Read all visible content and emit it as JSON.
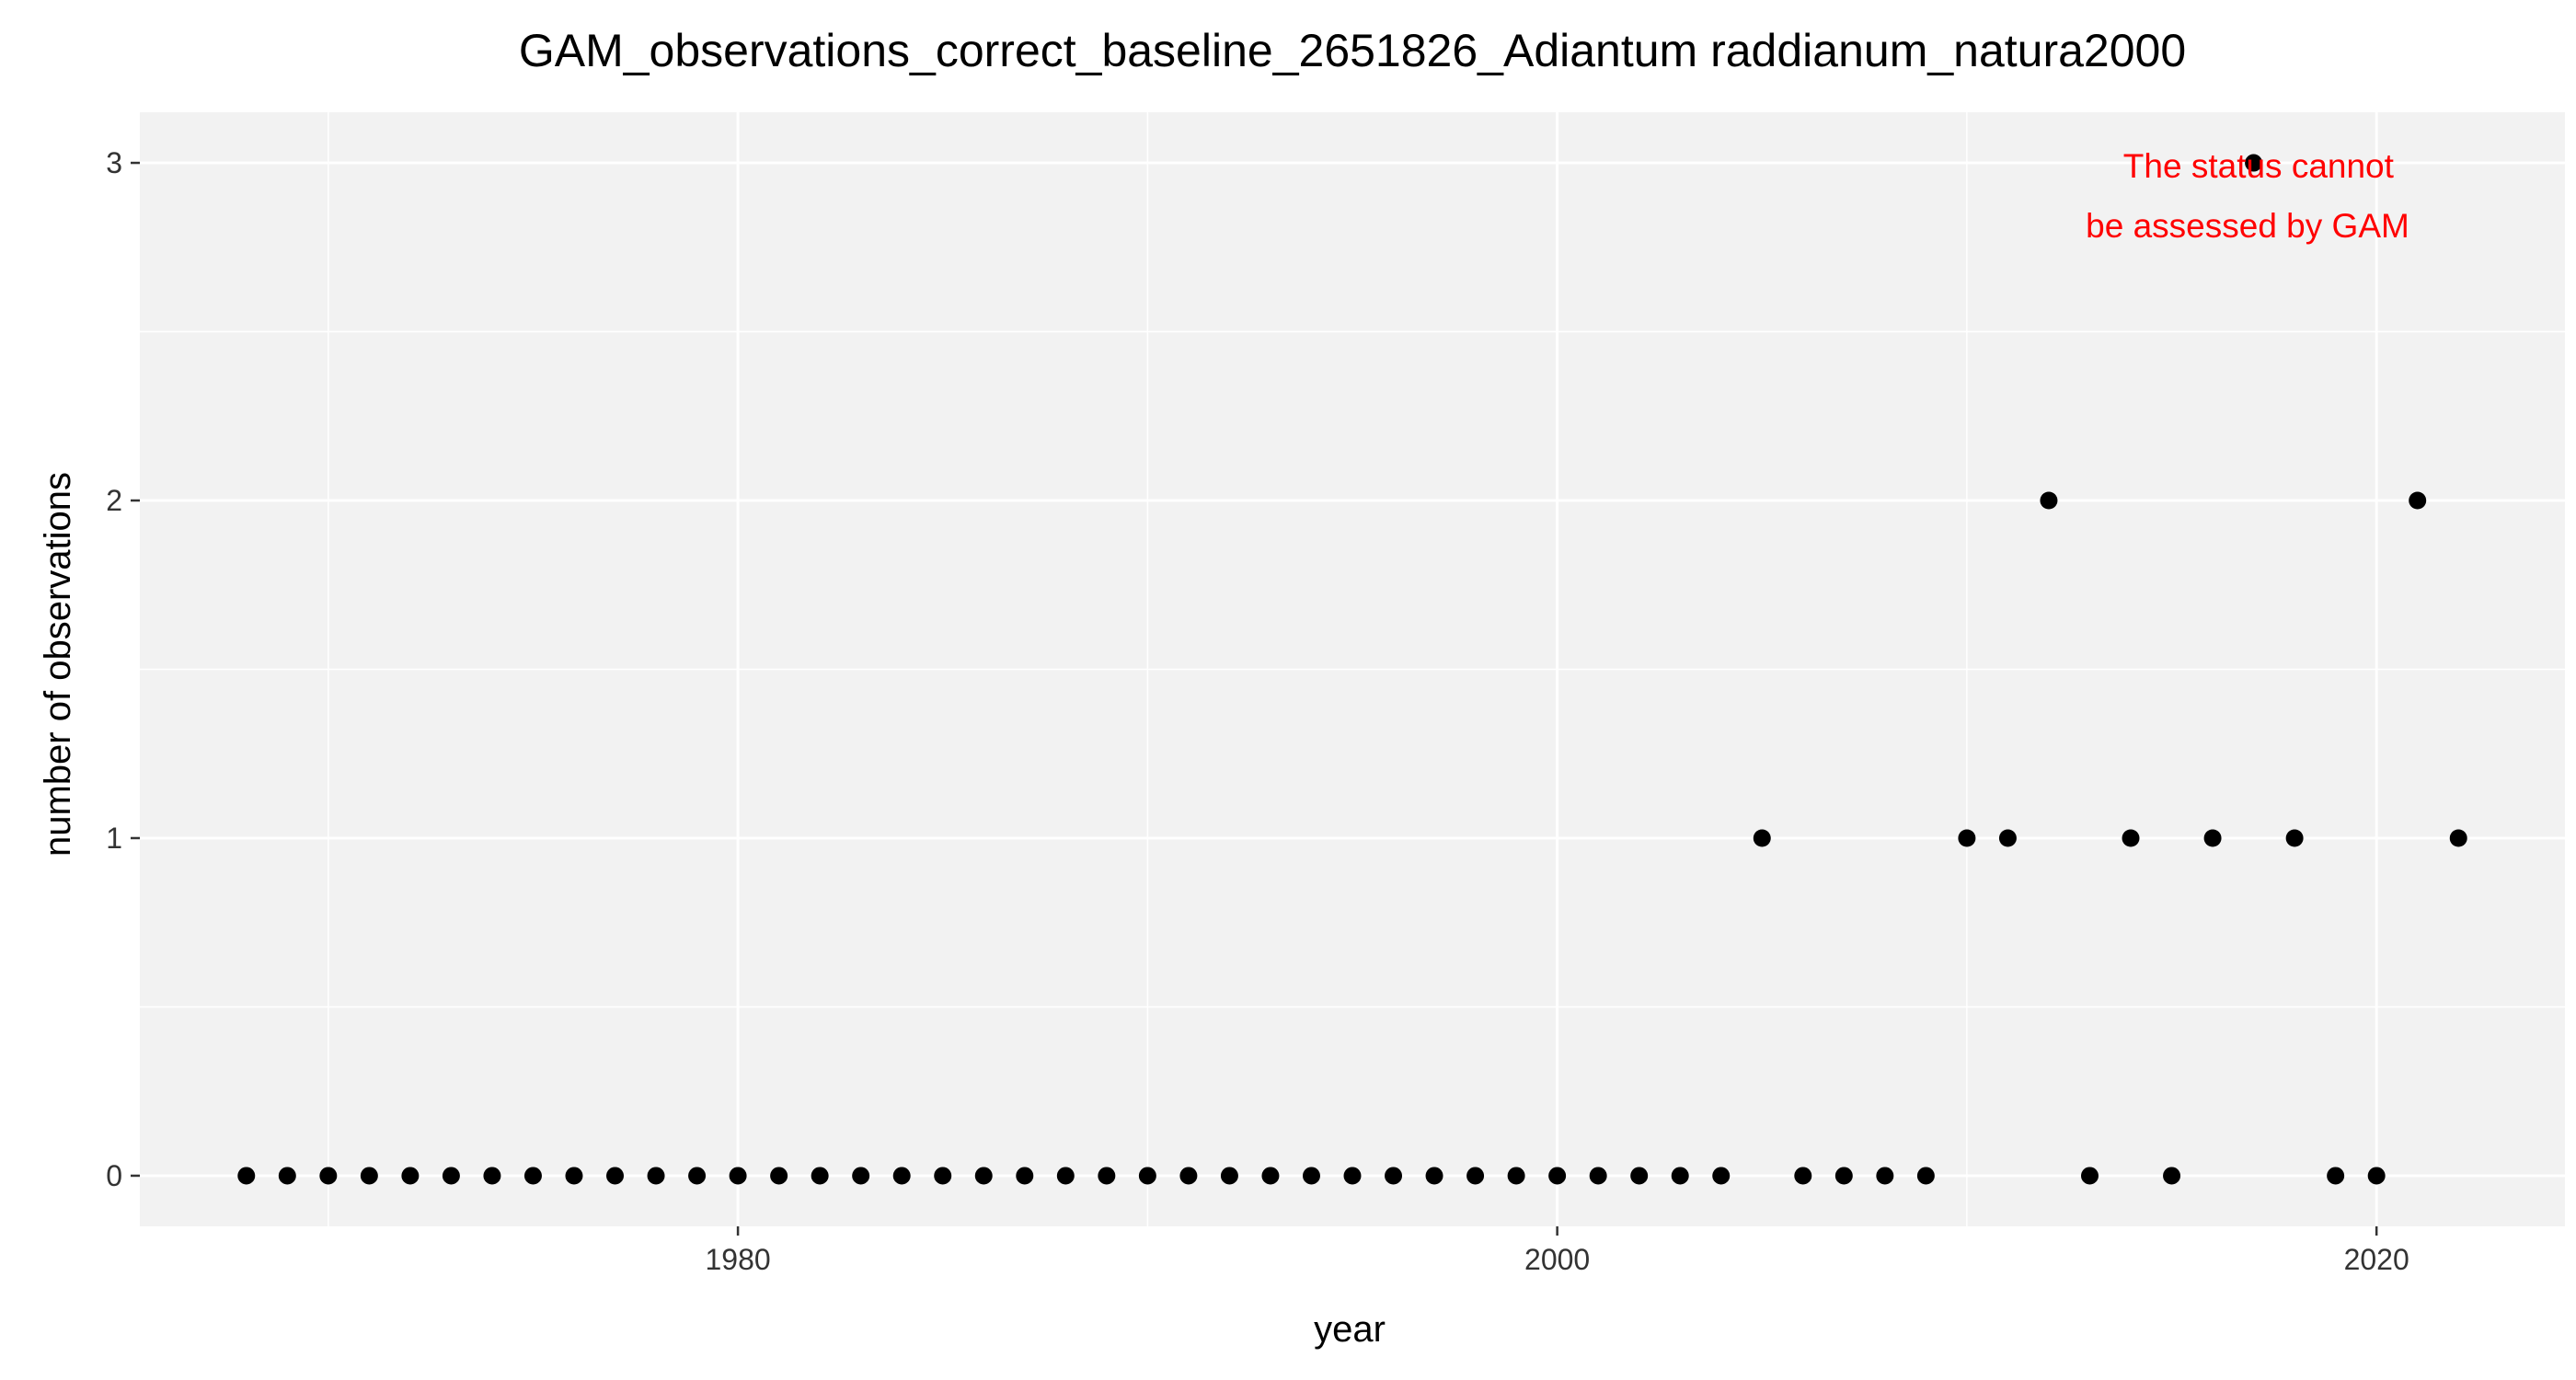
{
  "chart_data": {
    "type": "scatter",
    "title": "GAM_observations_correct_baseline_2651826_Adiantum raddianum_natura2000",
    "xlabel": "year",
    "ylabel": "number of observations",
    "xlim": [
      1965.4,
      2024.6
    ],
    "ylim": [
      -0.15,
      3.15
    ],
    "x_ticks": [
      1980,
      2000,
      2020
    ],
    "x_tick_labels": [
      "1980",
      "2000",
      "2020"
    ],
    "y_ticks": [
      0,
      1,
      2,
      3
    ],
    "y_tick_labels": [
      "0",
      "1",
      "2",
      "3"
    ],
    "grid": true,
    "panel_background": "#f2f2f2",
    "grid_color": "#ffffff",
    "point_color": "#000000",
    "annotation": {
      "lines": [
        "The status cannot",
        "be assessed by GAM"
      ],
      "color": "#ff0000"
    },
    "points": [
      {
        "x": 1968,
        "y": 0
      },
      {
        "x": 1969,
        "y": 0
      },
      {
        "x": 1970,
        "y": 0
      },
      {
        "x": 1971,
        "y": 0
      },
      {
        "x": 1972,
        "y": 0
      },
      {
        "x": 1973,
        "y": 0
      },
      {
        "x": 1974,
        "y": 0
      },
      {
        "x": 1975,
        "y": 0
      },
      {
        "x": 1976,
        "y": 0
      },
      {
        "x": 1977,
        "y": 0
      },
      {
        "x": 1978,
        "y": 0
      },
      {
        "x": 1979,
        "y": 0
      },
      {
        "x": 1980,
        "y": 0
      },
      {
        "x": 1981,
        "y": 0
      },
      {
        "x": 1982,
        "y": 0
      },
      {
        "x": 1983,
        "y": 0
      },
      {
        "x": 1984,
        "y": 0
      },
      {
        "x": 1985,
        "y": 0
      },
      {
        "x": 1986,
        "y": 0
      },
      {
        "x": 1987,
        "y": 0
      },
      {
        "x": 1988,
        "y": 0
      },
      {
        "x": 1989,
        "y": 0
      },
      {
        "x": 1990,
        "y": 0
      },
      {
        "x": 1991,
        "y": 0
      },
      {
        "x": 1992,
        "y": 0
      },
      {
        "x": 1993,
        "y": 0
      },
      {
        "x": 1994,
        "y": 0
      },
      {
        "x": 1995,
        "y": 0
      },
      {
        "x": 1996,
        "y": 0
      },
      {
        "x": 1997,
        "y": 0
      },
      {
        "x": 1998,
        "y": 0
      },
      {
        "x": 1999,
        "y": 0
      },
      {
        "x": 2000,
        "y": 0
      },
      {
        "x": 2001,
        "y": 0
      },
      {
        "x": 2002,
        "y": 0
      },
      {
        "x": 2003,
        "y": 0
      },
      {
        "x": 2004,
        "y": 0
      },
      {
        "x": 2005,
        "y": 1
      },
      {
        "x": 2006,
        "y": 0
      },
      {
        "x": 2007,
        "y": 0
      },
      {
        "x": 2008,
        "y": 0
      },
      {
        "x": 2009,
        "y": 0
      },
      {
        "x": 2010,
        "y": 1
      },
      {
        "x": 2011,
        "y": 1
      },
      {
        "x": 2012,
        "y": 2
      },
      {
        "x": 2013,
        "y": 0
      },
      {
        "x": 2014,
        "y": 1
      },
      {
        "x": 2015,
        "y": 0
      },
      {
        "x": 2016,
        "y": 1
      },
      {
        "x": 2017,
        "y": 3
      },
      {
        "x": 2018,
        "y": 1
      },
      {
        "x": 2019,
        "y": 0
      },
      {
        "x": 2020,
        "y": 0
      },
      {
        "x": 2021,
        "y": 2
      },
      {
        "x": 2022,
        "y": 1
      }
    ]
  }
}
